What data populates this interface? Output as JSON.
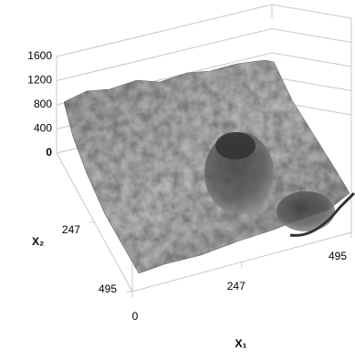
{
  "chart_data": {
    "type": "surface",
    "x_label": "X₁",
    "y_label": "X₂",
    "xlim": [
      0,
      495
    ],
    "xticks": [
      0,
      247,
      495
    ],
    "ylim": [
      0,
      495
    ],
    "yticks": [
      247,
      495
    ],
    "zlim": [
      0,
      1600
    ],
    "zticks": [
      0,
      400,
      800,
      1200,
      1600
    ],
    "grid": true
  }
}
